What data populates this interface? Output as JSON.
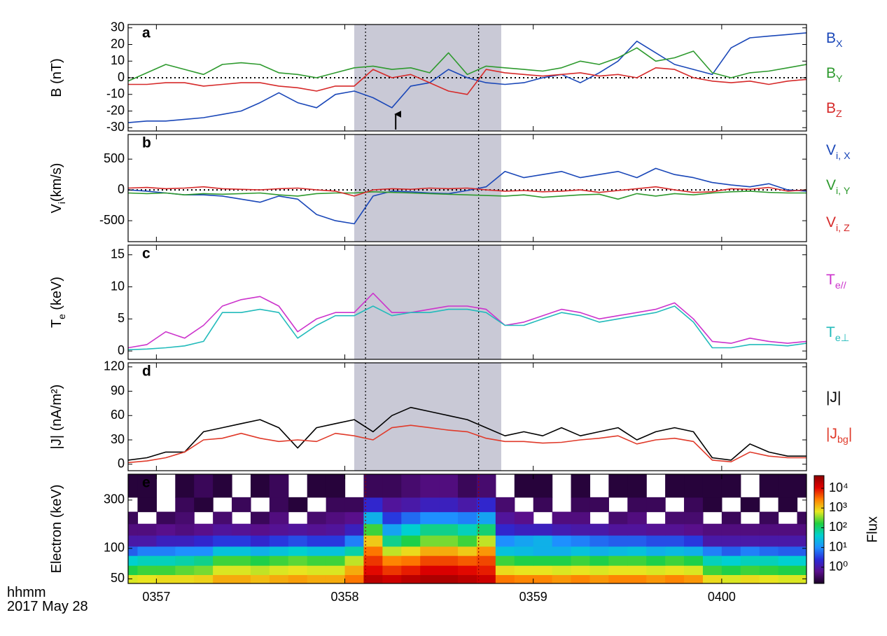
{
  "chart_data": {
    "xlim": [
      56.85,
      60.45
    ],
    "xticks": [
      {
        "value": 57,
        "label": "0357"
      },
      {
        "value": 58,
        "label": "0358"
      },
      {
        "value": 59,
        "label": "0359"
      },
      {
        "value": 60,
        "label": "0400"
      }
    ],
    "time_label": "hhmm",
    "date": "2017 May 28",
    "shade": [
      58.05,
      58.83
    ],
    "vlines": [
      58.11,
      58.71
    ],
    "x": [
      56.85,
      56.95,
      57.05,
      57.15,
      57.25,
      57.35,
      57.45,
      57.55,
      57.65,
      57.75,
      57.85,
      57.95,
      58.05,
      58.15,
      58.25,
      58.35,
      58.45,
      58.55,
      58.65,
      58.75,
      58.85,
      58.95,
      59.05,
      59.15,
      59.25,
      59.35,
      59.45,
      59.55,
      59.65,
      59.75,
      59.85,
      59.95,
      60.05,
      60.15,
      60.25,
      60.35,
      60.45
    ],
    "panels": [
      {
        "type": "line",
        "label": "a",
        "ylabel": [
          "B (nT)"
        ],
        "ylim": [
          -32,
          32
        ],
        "yticks": [
          -30,
          -20,
          -10,
          0,
          10,
          20,
          30
        ],
        "hline": 0,
        "arrow_x": 58.27,
        "series": [
          {
            "name": [
              "B",
              "X"
            ],
            "color": "#1a47b8",
            "values": [
              -27,
              -26,
              -26,
              -25,
              -24,
              -22,
              -20,
              -15,
              -9,
              -15,
              -18,
              -10,
              -8,
              -12,
              -18,
              -5,
              -3,
              5,
              0,
              -3,
              -4,
              -3,
              0,
              2,
              -3,
              3,
              10,
              22,
              15,
              8,
              5,
              2,
              18,
              24,
              25,
              26,
              27
            ]
          },
          {
            "name": [
              "B",
              "Y"
            ],
            "color": "#2e9a2e",
            "values": [
              -2,
              3,
              8,
              5,
              2,
              8,
              9,
              8,
              3,
              2,
              0,
              3,
              6,
              7,
              5,
              6,
              3,
              15,
              2,
              7,
              6,
              5,
              4,
              6,
              10,
              8,
              12,
              18,
              10,
              12,
              16,
              3,
              0,
              3,
              4,
              6,
              8
            ]
          },
          {
            "name": [
              "B",
              "Z"
            ],
            "color": "#d62a2a",
            "values": [
              -4,
              -4,
              -3,
              -3,
              -5,
              -4,
              -3,
              -3,
              -5,
              -6,
              -8,
              -5,
              -5,
              5,
              0,
              2,
              -3,
              -8,
              -10,
              5,
              3,
              2,
              1,
              2,
              3,
              1,
              2,
              0,
              6,
              5,
              0,
              -2,
              -3,
              -2,
              -4,
              -2,
              -1
            ]
          }
        ]
      },
      {
        "type": "line",
        "label": "b",
        "ylabel": [
          "V",
          "i",
          "(km/s)"
        ],
        "ylim": [
          -840,
          900
        ],
        "yticks": [
          -500,
          0,
          500
        ],
        "hline": 0,
        "series": [
          {
            "name": [
              "V",
              "i, X"
            ],
            "color": "#1a47b8",
            "values": [
              0,
              -20,
              -50,
              -80,
              -80,
              -100,
              -150,
              -200,
              -100,
              -150,
              -400,
              -500,
              -550,
              -100,
              -20,
              -30,
              -50,
              -60,
              -10,
              50,
              300,
              200,
              250,
              300,
              200,
              250,
              300,
              200,
              350,
              250,
              200,
              120,
              80,
              50,
              100,
              0,
              -20
            ]
          },
          {
            "name": [
              "V",
              "i, Y"
            ],
            "color": "#2e9a2e",
            "values": [
              -50,
              -60,
              -50,
              -80,
              -60,
              -70,
              -60,
              -50,
              -80,
              -100,
              -60,
              -50,
              -50,
              -30,
              -40,
              -50,
              -60,
              -70,
              -80,
              -90,
              -100,
              -80,
              -120,
              -100,
              -80,
              -70,
              -150,
              -60,
              -100,
              -60,
              -80,
              -50,
              -30,
              -20,
              -40,
              -50,
              -50
            ]
          },
          {
            "name": [
              "V",
              "i, Z"
            ],
            "color": "#d62a2a",
            "values": [
              30,
              40,
              20,
              30,
              50,
              20,
              10,
              0,
              20,
              30,
              0,
              -20,
              -100,
              0,
              20,
              10,
              30,
              20,
              30,
              0,
              -20,
              -10,
              -30,
              -20,
              0,
              -40,
              -10,
              20,
              50,
              0,
              -40,
              -30,
              20,
              10,
              40,
              -20,
              0
            ]
          }
        ]
      },
      {
        "type": "line",
        "label": "c",
        "ylabel": [
          "T",
          "e",
          " (keV)"
        ],
        "ylim": [
          -1.3,
          16.5
        ],
        "yticks": [
          0,
          5,
          10,
          15
        ],
        "series": [
          {
            "name": [
              "T",
              "e//"
            ],
            "color": "#cc33cc",
            "values": [
              0.5,
              1,
              3,
              2,
              4,
              7,
              8,
              8.5,
              7,
              3,
              5,
              6,
              6,
              9,
              6,
              6,
              6.5,
              7,
              7,
              6.5,
              4,
              4.5,
              5.5,
              6.5,
              6,
              5,
              5.5,
              6,
              6.5,
              7.5,
              5,
              1.5,
              1.2,
              2,
              1.5,
              1.2,
              1.5
            ]
          },
          {
            "name": [
              "T",
              "e⊥"
            ],
            "color": "#22bbbb",
            "values": [
              0.2,
              0.3,
              0.5,
              0.8,
              1.5,
              6,
              6,
              6.5,
              6,
              2,
              4,
              5.5,
              5.5,
              7,
              5.5,
              6,
              6,
              6.5,
              6.5,
              6,
              4,
              4,
              5,
              6,
              5.5,
              4.5,
              5,
              5.5,
              6,
              7,
              4.5,
              0.5,
              0.5,
              1,
              1,
              0.8,
              1.2
            ]
          }
        ]
      },
      {
        "type": "line",
        "label": "d",
        "ylabel": [
          "|J| (nA/m²)"
        ],
        "ylim": [
          -8,
          125
        ],
        "yticks": [
          0,
          30,
          60,
          90,
          120
        ],
        "series": [
          {
            "name": [
              "|J|"
            ],
            "color": "#000000",
            "values": [
              5,
              8,
              15,
              15,
              40,
              45,
              50,
              55,
              45,
              20,
              45,
              50,
              55,
              40,
              60,
              70,
              65,
              60,
              55,
              45,
              35,
              40,
              35,
              45,
              35,
              40,
              45,
              30,
              40,
              45,
              40,
              8,
              5,
              25,
              15,
              10,
              10
            ]
          },
          {
            "name": [
              "|J",
              "bg",
              "|"
            ],
            "color": "#e03a2a",
            "values": [
              2,
              4,
              8,
              15,
              30,
              32,
              38,
              32,
              28,
              30,
              28,
              38,
              35,
              30,
              45,
              48,
              45,
              42,
              40,
              32,
              28,
              28,
              26,
              27,
              30,
              32,
              35,
              25,
              30,
              32,
              28,
              5,
              3,
              15,
              10,
              8,
              8
            ]
          }
        ]
      },
      {
        "type": "spectrogram",
        "label": "e",
        "ylabel": [
          "Electron (keV)"
        ],
        "ylim": [
          45,
          540
        ],
        "log_y": true,
        "yticks": [
          50,
          100,
          300
        ],
        "y_edges": [
          45,
          55,
          68,
          85,
          105,
          135,
          175,
          230,
          320,
          540
        ],
        "zlabel": "Flux",
        "zlim": [
          0.15,
          44000
        ],
        "log_z": true,
        "zticks": [
          {
            "value": 1,
            "label": "10⁰"
          },
          {
            "value": 10,
            "label": "10¹"
          },
          {
            "value": 100,
            "label": "10²"
          },
          {
            "value": 1000,
            "label": "10³"
          },
          {
            "value": 10000,
            "label": "10⁴"
          }
        ],
        "colormap": [
          "#1a0026",
          "#5a0f8c",
          "#2a2ad8",
          "#1e90ff",
          "#00d0d0",
          "#20d040",
          "#e8e820",
          "#ff8000",
          "#e00000",
          "#8a0000"
        ],
        "z": [
          [
            600,
            700,
            800,
            800,
            900,
            1500,
            1500,
            1200,
            1500,
            1800,
            1500,
            1500,
            3000,
            20000,
            15000,
            20000,
            25000,
            25000,
            20000,
            15000,
            3000,
            2500,
            2500,
            2000,
            2500,
            2000,
            2500,
            2500,
            2000,
            2500,
            2000,
            800,
            600,
            800,
            700,
            600,
            600
          ],
          [
            150,
            200,
            200,
            250,
            300,
            600,
            600,
            500,
            600,
            700,
            600,
            600,
            1500,
            10000,
            6000,
            8000,
            12000,
            12000,
            10000,
            8000,
            800,
            700,
            700,
            600,
            700,
            600,
            700,
            700,
            600,
            700,
            600,
            200,
            150,
            200,
            180,
            150,
            150
          ],
          [
            40,
            50,
            50,
            60,
            80,
            200,
            200,
            150,
            200,
            250,
            200,
            200,
            500,
            6000,
            2500,
            3000,
            5000,
            5000,
            4000,
            5000,
            200,
            150,
            150,
            150,
            200,
            150,
            200,
            200,
            150,
            200,
            150,
            50,
            40,
            50,
            50,
            40,
            40
          ],
          [
            5,
            8,
            8,
            10,
            10,
            30,
            30,
            20,
            30,
            40,
            30,
            30,
            60,
            3000,
            500,
            800,
            1500,
            1500,
            1000,
            2000,
            30,
            25,
            20,
            20,
            30,
            20,
            25,
            30,
            20,
            25,
            20,
            8,
            5,
            8,
            6,
            5,
            5
          ],
          [
            1,
            1,
            1.5,
            1.5,
            2,
            3,
            3,
            2,
            3,
            4,
            3,
            3,
            8,
            1000,
            80,
            150,
            300,
            300,
            200,
            500,
            10,
            15,
            20,
            10,
            8,
            6,
            5,
            5,
            4,
            4,
            3,
            1,
            1,
            1,
            1,
            1,
            1
          ],
          [
            0.5,
            0.5,
            0.6,
            0.5,
            0.6,
            0.8,
            0.7,
            0.6,
            0.7,
            0.8,
            0.7,
            0.8,
            1.5,
            200,
            15,
            40,
            80,
            80,
            50,
            100,
            2,
            1.5,
            1.5,
            1.2,
            1,
            1,
            0.8,
            0.8,
            0.7,
            0.7,
            0.6,
            0.5,
            0.5,
            0.5,
            0.5,
            0.5,
            0.5
          ],
          [
            0.3,
            null,
            0.3,
            0.4,
            null,
            0.4,
            null,
            0.3,
            0.5,
            null,
            0.4,
            0.5,
            0.6,
            20,
            3,
            6,
            10,
            10,
            8,
            15,
            0.8,
            0.6,
            null,
            0.5,
            0.5,
            null,
            0.4,
            0.5,
            null,
            0.4,
            0.4,
            null,
            0.3,
            null,
            0.3,
            null,
            0.3
          ],
          [
            null,
            0.2,
            null,
            0.3,
            0.2,
            null,
            0.3,
            null,
            0.3,
            0.2,
            null,
            0.3,
            0.3,
            2,
            0.8,
            1,
            1.5,
            1.5,
            1,
            2,
            0.4,
            null,
            0.3,
            null,
            0.3,
            0.3,
            null,
            0.3,
            0.3,
            null,
            0.3,
            0.2,
            null,
            0.2,
            null,
            0.2,
            null
          ],
          [
            0.2,
            0.2,
            null,
            0.2,
            0.3,
            0.2,
            null,
            0.2,
            0.3,
            null,
            0.2,
            0.2,
            null,
            0.3,
            0.3,
            0.4,
            0.5,
            0.5,
            0.3,
            0.4,
            null,
            0.2,
            0.2,
            null,
            0.2,
            null,
            0.2,
            0.2,
            null,
            0.2,
            0.2,
            0.2,
            0.2,
            null,
            0.2,
            0.2,
            0.2
          ]
        ]
      }
    ]
  }
}
